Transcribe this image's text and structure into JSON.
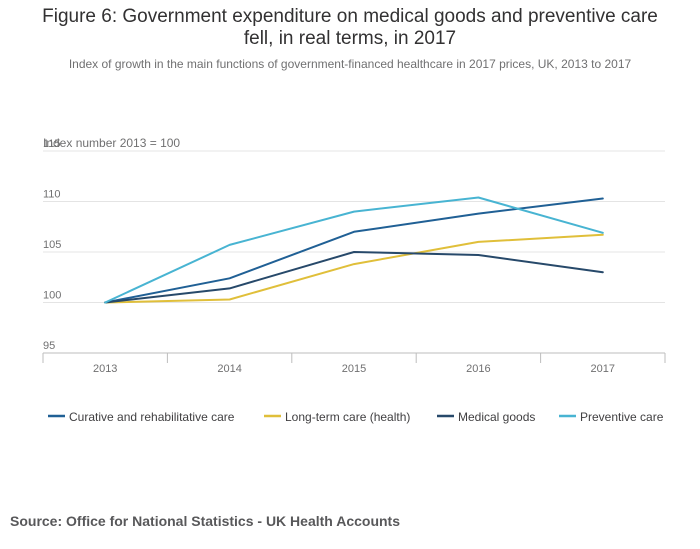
{
  "title_line1": "Figure 6: Government expenditure on medical goods and preventive care",
  "title_line2": "fell, in real terms, in 2017",
  "subtitle": "Index of growth in the main functions of government-financed healthcare in 2017 prices, UK, 2013 to 2017",
  "source": "Source: Office for National Statistics - UK Health Accounts",
  "colors": {
    "curative": "#206095",
    "longterm": "#e0bf3a",
    "medical": "#27496a",
    "preventive": "#48b4d2",
    "grid": "#e4e4e4",
    "axis_text": "#707071"
  },
  "chart_data": {
    "type": "line",
    "ylabel": "Index number 2013 = 100",
    "categories": [
      "2013",
      "2014",
      "2015",
      "2016",
      "2017"
    ],
    "yticks": [
      "95",
      "100",
      "105",
      "110",
      "115"
    ],
    "ylim": [
      95,
      115
    ],
    "grid": true,
    "legend_position": "bottom",
    "series": [
      {
        "name": "Curative and rehabilitative care",
        "color": "#206095",
        "values": [
          100,
          102.4,
          107,
          108.8,
          110.3
        ]
      },
      {
        "name": "Long-term care (health)",
        "color": "#e0bf3a",
        "values": [
          100,
          100.3,
          103.8,
          106,
          106.7
        ]
      },
      {
        "name": "Medical goods",
        "color": "#27496a",
        "values": [
          100,
          101.4,
          105,
          104.7,
          103
        ]
      },
      {
        "name": "Preventive care",
        "color": "#48b4d2",
        "values": [
          100,
          105.7,
          109,
          110.4,
          106.9
        ]
      }
    ]
  }
}
